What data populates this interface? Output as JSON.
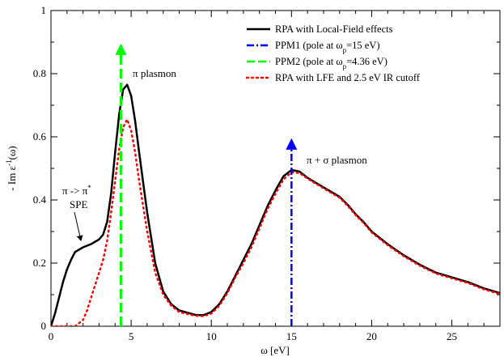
{
  "chart_data": {
    "type": "line",
    "xlabel": "ω [eV]",
    "ylabel": "- Im ε⁻¹(ω)",
    "xlim": [
      0,
      28
    ],
    "ylim": [
      0,
      1.0
    ],
    "xticks": [
      0,
      5,
      10,
      15,
      20,
      25
    ],
    "yticks": [
      0,
      0.2,
      0.4,
      0.6,
      0.8,
      1
    ],
    "xtick_labels": [
      "0",
      "5",
      "10",
      "15",
      "20",
      "25"
    ],
    "ytick_labels": [
      "0",
      "0.2",
      "0.4",
      "0.6",
      "0.8",
      "1"
    ],
    "grid": false,
    "legend_position": "top-right",
    "legend": [
      "RPA with Local-Field effects",
      "PPM1 (pole at ω_p=15 eV)",
      "PPM2 (pole at ω_p=4.36 eV)",
      "RPA with LFE and 2.5 eV IR cutoff"
    ],
    "series": [
      {
        "name": "RPA with Local-Field effects",
        "color": "#000000",
        "style": "solid",
        "x": [
          0,
          0.25,
          0.5,
          0.75,
          1,
          1.25,
          1.5,
          2,
          2.5,
          3,
          3.25,
          3.5,
          3.75,
          4,
          4.25,
          4.5,
          4.75,
          5,
          5.25,
          5.5,
          6,
          6.5,
          7,
          7.5,
          8,
          9,
          9.5,
          10,
          10.5,
          11,
          11.5,
          12,
          12.5,
          13,
          13.5,
          14,
          14.5,
          15,
          15.5,
          16,
          16.5,
          17,
          17.5,
          18,
          18.5,
          19,
          19.5,
          20,
          21,
          22,
          23,
          24,
          25,
          26,
          27,
          28
        ],
        "y": [
          0,
          0.04,
          0.09,
          0.14,
          0.18,
          0.21,
          0.235,
          0.25,
          0.26,
          0.275,
          0.29,
          0.33,
          0.42,
          0.55,
          0.67,
          0.75,
          0.765,
          0.73,
          0.65,
          0.55,
          0.36,
          0.2,
          0.11,
          0.07,
          0.05,
          0.036,
          0.035,
          0.045,
          0.07,
          0.11,
          0.16,
          0.21,
          0.26,
          0.32,
          0.38,
          0.43,
          0.475,
          0.495,
          0.49,
          0.47,
          0.455,
          0.44,
          0.425,
          0.41,
          0.385,
          0.355,
          0.33,
          0.3,
          0.26,
          0.225,
          0.195,
          0.17,
          0.155,
          0.14,
          0.12,
          0.105
        ]
      },
      {
        "name": "PPM1 (pole at ω_p=15 eV)",
        "color": "#0000ff",
        "style": "dash-dot",
        "x": [
          15,
          15
        ],
        "y": [
          0,
          0.59
        ]
      },
      {
        "name": "PPM2 (pole at ω_p=4.36 eV)",
        "color": "#00ff00",
        "style": "dashed",
        "x": [
          4.36,
          4.36
        ],
        "y": [
          0,
          0.89
        ]
      },
      {
        "name": "RPA with LFE and 2.5 eV IR cutoff",
        "color": "#ff0000",
        "style": "dotted",
        "x": [
          0,
          1.5,
          2,
          2.25,
          2.5,
          2.75,
          3,
          3.25,
          3.5,
          3.75,
          4,
          4.25,
          4.5,
          4.75,
          5,
          5.25,
          5.5,
          6,
          6.5,
          7,
          7.5,
          8,
          9,
          9.5,
          10,
          10.5,
          11,
          11.5,
          12,
          12.5,
          13,
          13.5,
          14,
          14.5,
          15,
          15.5,
          16,
          16.5,
          17,
          17.5,
          18,
          18.5,
          19,
          19.5,
          20,
          21,
          22,
          23,
          24,
          25,
          26,
          27,
          28
        ],
        "y": [
          0,
          0,
          0.02,
          0.05,
          0.09,
          0.13,
          0.17,
          0.21,
          0.27,
          0.36,
          0.46,
          0.56,
          0.63,
          0.655,
          0.62,
          0.55,
          0.46,
          0.3,
          0.17,
          0.1,
          0.065,
          0.045,
          0.033,
          0.032,
          0.04,
          0.065,
          0.105,
          0.155,
          0.2,
          0.25,
          0.31,
          0.37,
          0.42,
          0.465,
          0.488,
          0.485,
          0.468,
          0.452,
          0.437,
          0.422,
          0.407,
          0.382,
          0.352,
          0.327,
          0.297,
          0.257,
          0.222,
          0.192,
          0.167,
          0.152,
          0.137,
          0.117,
          0.102
        ]
      }
    ],
    "annotations": [
      {
        "text": "π plasmon",
        "x": 5.1,
        "y": 0.79
      },
      {
        "text": "π + σ plasmon",
        "x": 16.1,
        "y": 0.555
      },
      {
        "text": "π -> π",
        "sup": "*",
        "x": 1.0,
        "y": 0.445
      },
      {
        "text": "SPE",
        "x": 1.85,
        "y": 0.4
      }
    ]
  }
}
